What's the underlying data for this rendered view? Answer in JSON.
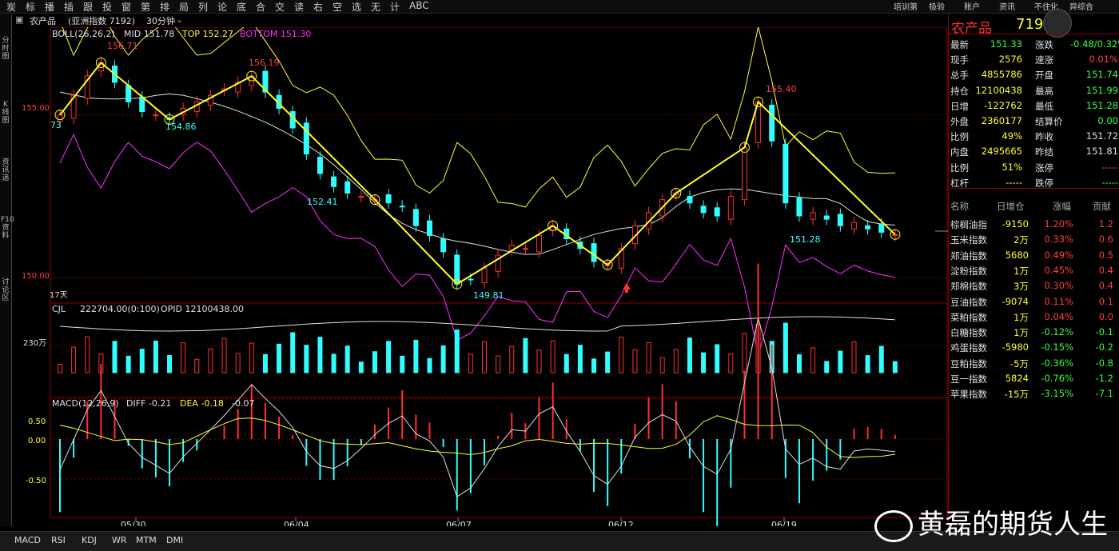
{
  "toolbar": {
    "items": [
      "炭",
      "标",
      "播",
      "插",
      "跟",
      "投",
      "窗",
      "第",
      "排",
      "局",
      "列",
      "论",
      "底",
      "合",
      "交",
      "读",
      "右",
      "空",
      "选",
      "无",
      "计",
      "ABC"
    ],
    "right_items": [
      "培训第",
      "极验",
      "账户",
      "资讯",
      "不住化",
      "异综合"
    ]
  },
  "leftbar": {
    "labels": [
      "分时图",
      "K线图",
      "资讯追",
      "F10资料",
      "讨论区"
    ]
  },
  "header": {
    "instrument": "农产品",
    "index_name": "(亚洲指数 7192)",
    "period": "30分钟"
  },
  "boll": {
    "label": "BOLL(26,26,2)",
    "mid": "MID 151.78",
    "top": "TOP 152.27",
    "bottom": "BOTTOM 151.30",
    "colors": {
      "mid": "#e0e0e0",
      "top": "#ffff30",
      "bottom": "#ff30ff"
    }
  },
  "price_axis": {
    "p155": "155.00",
    "p150": "150.00"
  },
  "price_labels": {
    "high1": "156.71",
    "low1": "154.86",
    "high2": "156.19",
    "low2": "152.41",
    "low3": "149.81",
    "high3": "155.40",
    "low4": "151.28",
    "left": "73"
  },
  "days_label": "17天",
  "volume": {
    "label": "CJL",
    "value": "222704.00(0:100)",
    "opid": "OPID 12100438.00",
    "axis": "230万"
  },
  "macd": {
    "label": "MACD(12,26,9)",
    "diff": "DIFF -0.21",
    "dea": "DEA -0.18",
    "macd_val": "-0.07",
    "axis": [
      "0.50",
      "0.00",
      "-0.50"
    ]
  },
  "dates": [
    "05/30",
    "06/04",
    "06/07",
    "06/12",
    "06/19"
  ],
  "panel": {
    "title": "农产品",
    "code": "7192",
    "quote": [
      {
        "l": "最新",
        "v": "151.33",
        "c": "gr",
        "l2": "涨跌",
        "v2": "-0.48/0.32%",
        "c2": "gr"
      },
      {
        "l": "现手",
        "v": "2576",
        "c": "yl",
        "l2": "速涨",
        "v2": "0.01%",
        "c2": "rd"
      },
      {
        "l": "总手",
        "v": "4855786",
        "c": "yl",
        "l2": "开盘",
        "v2": "151.74",
        "c2": "gr"
      },
      {
        "l": "持仓",
        "v": "12100438",
        "c": "yl",
        "l2": "最高",
        "v2": "151.99",
        "c2": "gr"
      },
      {
        "l": "日增",
        "v": "-122762",
        "c": "yl",
        "l2": "最低",
        "v2": "151.28",
        "c2": "gr"
      },
      {
        "l": "外盘",
        "v": "2360177",
        "c": "yl",
        "l2": "结算价",
        "v2": "0.00",
        "c2": "gr"
      },
      {
        "l": "比例",
        "v": "49%",
        "c": "yl",
        "l2": "昨收",
        "v2": "151.72",
        "c2": "wh"
      },
      {
        "l": "内盘",
        "v": "2495665",
        "c": "yl",
        "l2": "昨结",
        "v2": "151.81",
        "c2": "wh"
      },
      {
        "l": "比例",
        "v": "51%",
        "c": "yl",
        "l2": "涨停",
        "v2": "-----",
        "c2": "rd"
      },
      {
        "l": "杠杆",
        "v": "-----",
        "c": "yl",
        "l2": "跌停",
        "v2": "-----",
        "c2": "gr"
      }
    ],
    "table_header": [
      "名称",
      "日增仓",
      "涨幅",
      "贡献"
    ],
    "table": [
      {
        "n": "棕榈油指",
        "a": "-9150",
        "p": "1.20%",
        "g": "1.2",
        "pc": "rd"
      },
      {
        "n": "玉米指数",
        "a": "2万",
        "p": "0.33%",
        "g": "0.6",
        "pc": "rd"
      },
      {
        "n": "郑油指数",
        "a": "5680",
        "p": "0.49%",
        "g": "0.5",
        "pc": "rd"
      },
      {
        "n": "淀粉指数",
        "a": "1万",
        "p": "0.45%",
        "g": "0.4",
        "pc": "rd"
      },
      {
        "n": "郑棉指数",
        "a": "3万",
        "p": "0.30%",
        "g": "0.4",
        "pc": "rd"
      },
      {
        "n": "豆油指数",
        "a": "-9074",
        "p": "0.11%",
        "g": "0.1",
        "pc": "rd"
      },
      {
        "n": "菜粕指数",
        "a": "1万",
        "p": "0.04%",
        "g": "0.0",
        "pc": "rd"
      },
      {
        "n": "白糖指数",
        "a": "1万",
        "p": "-0.12%",
        "g": "-0.1",
        "pc": "gr"
      },
      {
        "n": "鸡蛋指数",
        "a": "-5980",
        "p": "-0.15%",
        "g": "-0.2",
        "pc": "gr"
      },
      {
        "n": "豆粕指数",
        "a": "-5万",
        "p": "-0.36%",
        "g": "-0.8",
        "pc": "gr"
      },
      {
        "n": "豆一指数",
        "a": "5824",
        "p": "-0.76%",
        "g": "-1.2",
        "pc": "gr"
      },
      {
        "n": "苹果指数",
        "a": "-15万",
        "p": "-3.15%",
        "g": "-7.1",
        "pc": "gr"
      }
    ]
  },
  "bottom_tabs": [
    "MACD",
    "RSI",
    "KDJ",
    "WR",
    "MTM",
    "DMI"
  ],
  "watermark": "黄磊的期货人生",
  "chart_data": {
    "type": "candlestick",
    "price_range": [
      149.3,
      157.2
    ],
    "closes": [
      155.0,
      155.6,
      156.2,
      156.6,
      156.0,
      155.4,
      155.1,
      155.0,
      154.86,
      155.2,
      155.4,
      155.6,
      155.8,
      156.0,
      156.19,
      155.7,
      155.2,
      154.6,
      153.8,
      153.2,
      152.8,
      152.6,
      152.5,
      152.4,
      152.3,
      152.2,
      151.6,
      151.3,
      150.8,
      149.81,
      149.95,
      150.3,
      150.7,
      151.0,
      150.9,
      151.3,
      151.6,
      151.2,
      150.9,
      150.5,
      150.4,
      150.9,
      151.6,
      152.0,
      152.4,
      152.6,
      152.3,
      152.0,
      151.9,
      152.5,
      154.0,
      155.4,
      154.2,
      152.3,
      151.9,
      152.0,
      151.8,
      151.6,
      151.7,
      151.5,
      151.4,
      151.33
    ],
    "volume_axis_max": 300,
    "macd_range": [
      -0.95,
      0.75
    ]
  }
}
